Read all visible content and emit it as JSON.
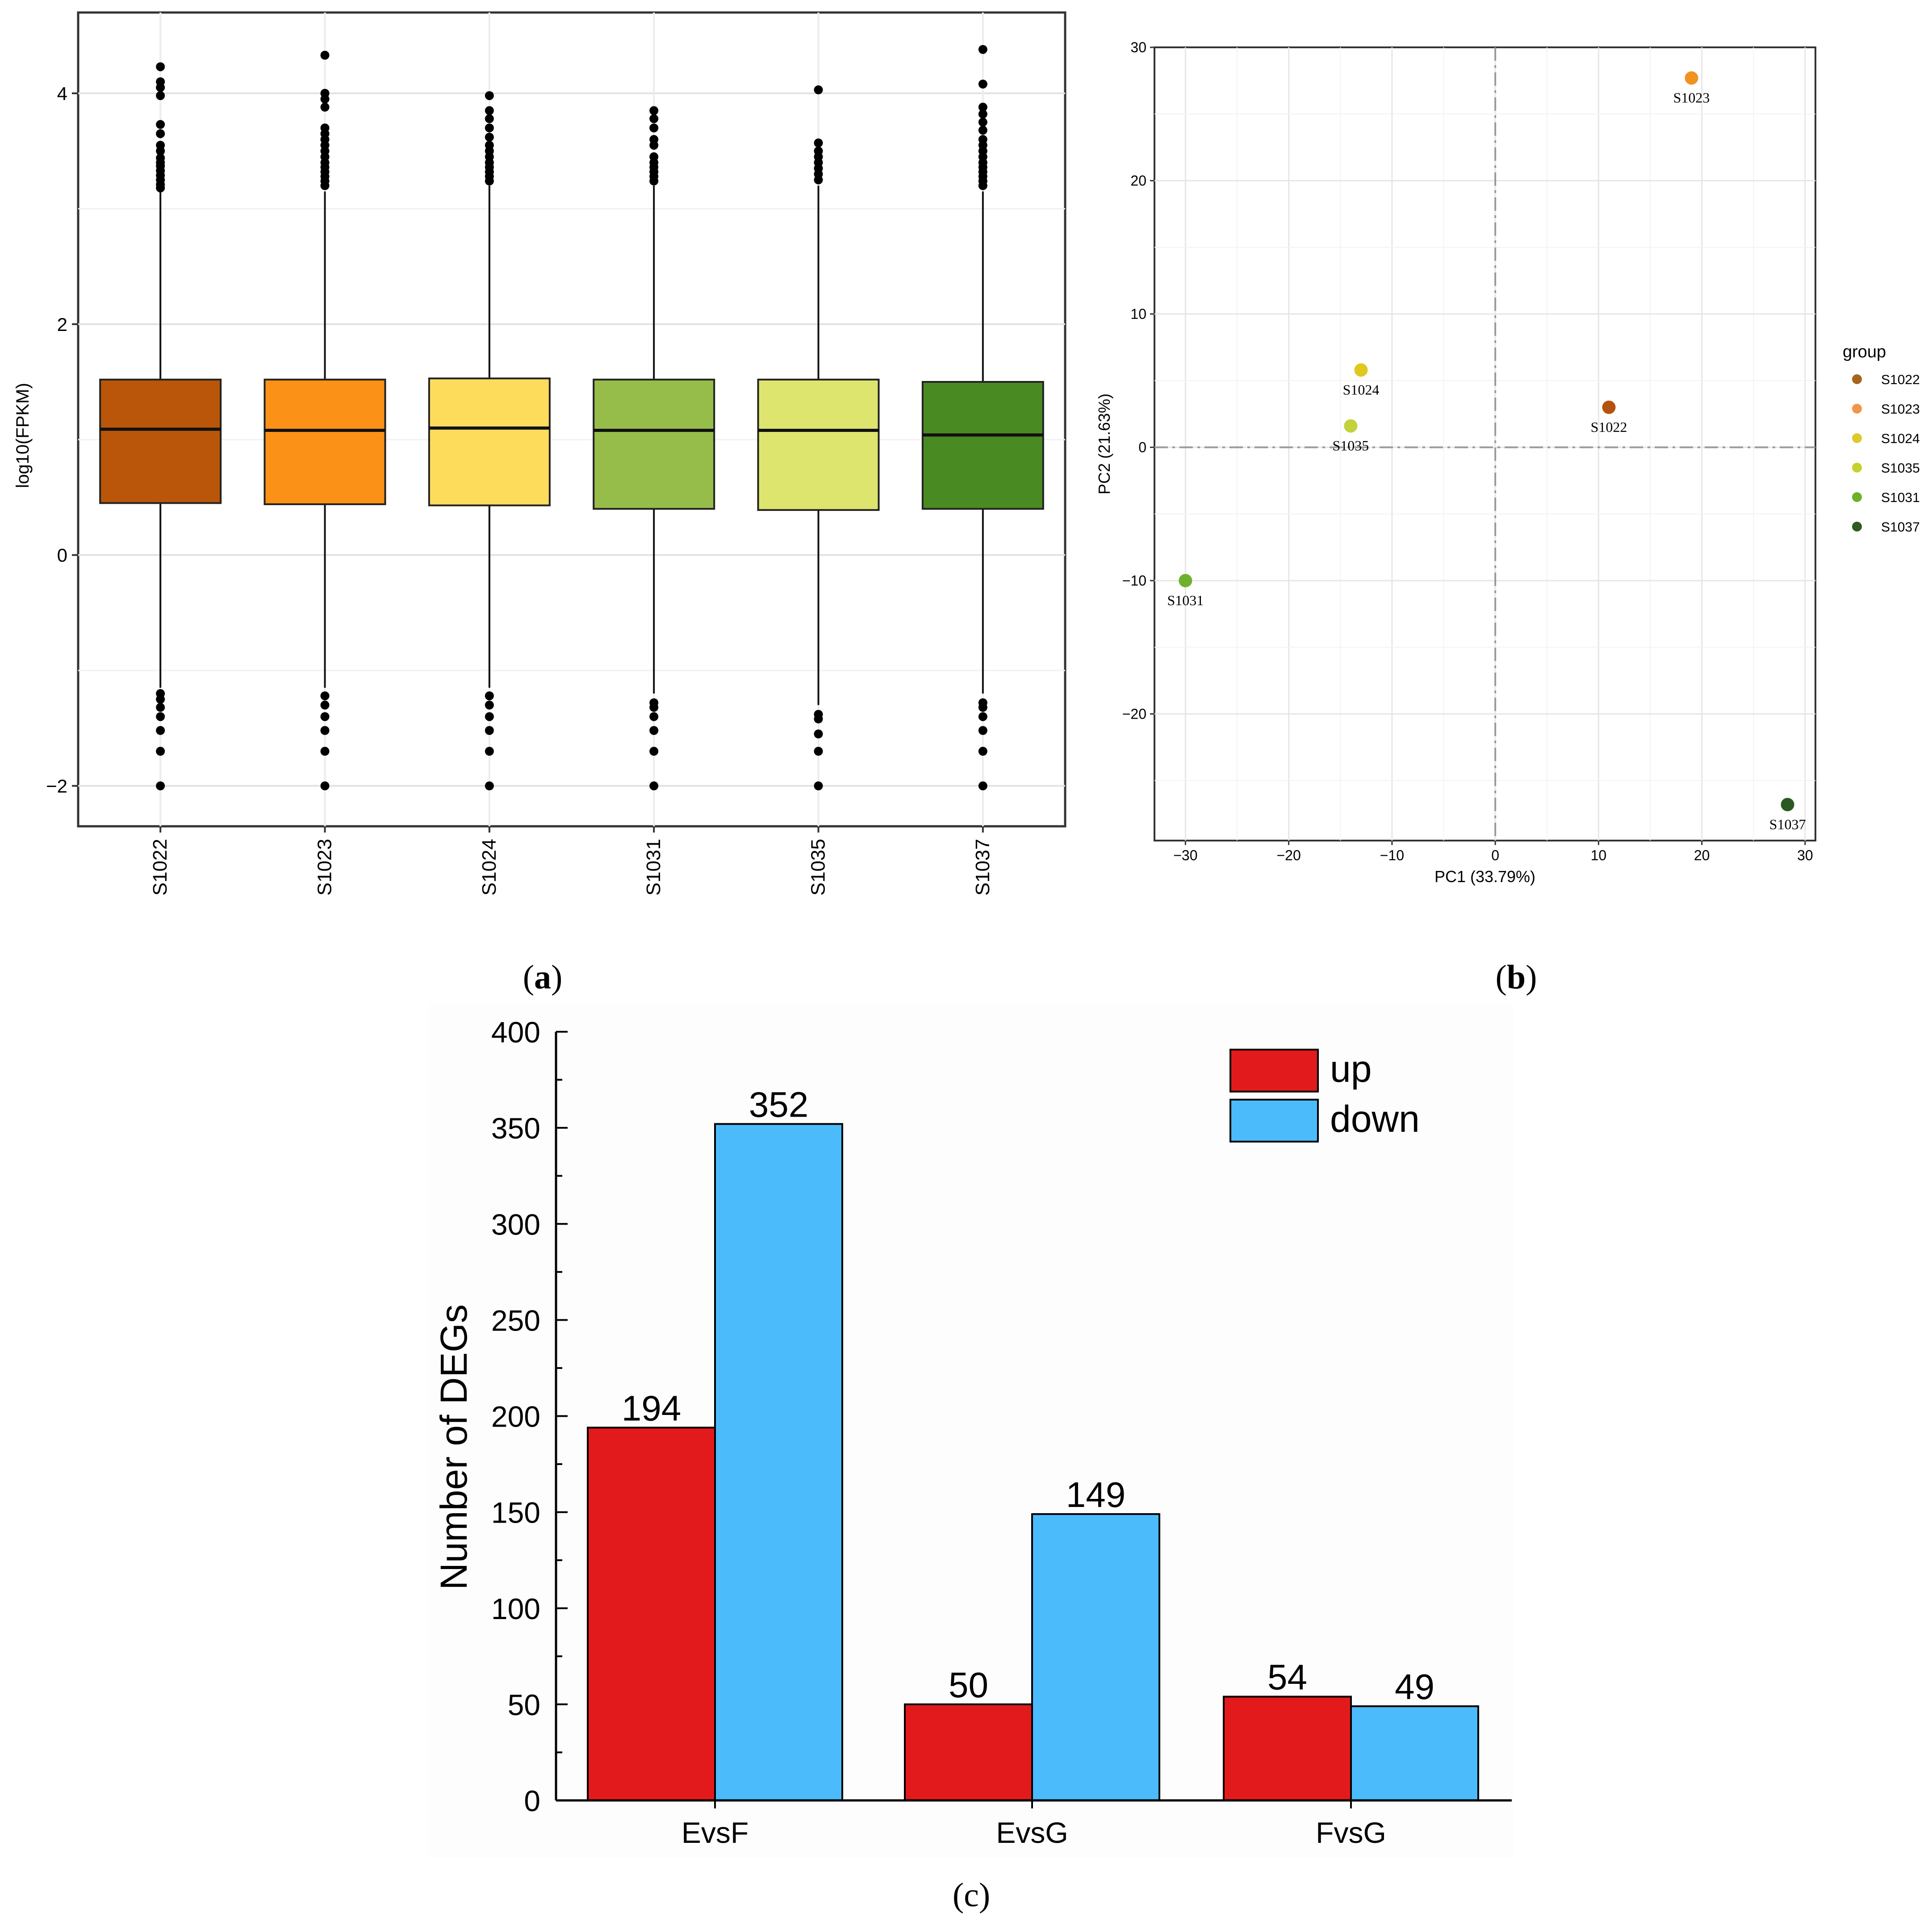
{
  "panels": {
    "a": {
      "label": "(a)",
      "letter": "a"
    },
    "b": {
      "label": "(b)",
      "letter": "b"
    },
    "c": {
      "label": "(c)",
      "letter": "c"
    }
  },
  "chart_data": [
    {
      "id": "a",
      "type": "box",
      "ylabel": "log10(FPKM)",
      "ylim": [
        -2.35,
        4.7
      ],
      "yticks": [
        -2,
        0,
        2,
        4
      ],
      "ytick_labels": [
        "−2",
        "0",
        "2",
        "4"
      ],
      "grid": true,
      "categories": [
        "S1022",
        "S1023",
        "S1024",
        "S1031",
        "S1035",
        "S1037"
      ],
      "colors": [
        "#b9560a",
        "#fb9116",
        "#fddc5c",
        "#96bd49",
        "#dde56f",
        "#4a8a23"
      ],
      "boxes": [
        {
          "name": "S1022",
          "q1": 0.45,
          "median": 1.09,
          "q3": 1.52,
          "whisker_low": -1.15,
          "whisker_high": 3.15,
          "outliers": [
            4.23,
            4.1,
            4.05,
            3.98,
            3.73,
            3.65,
            3.55,
            3.5,
            3.44,
            3.4,
            3.37,
            3.33,
            3.29,
            3.25,
            3.21,
            3.18,
            -1.2,
            -1.25,
            -1.32,
            -1.4,
            -1.52,
            -1.7,
            -2.0
          ]
        },
        {
          "name": "S1023",
          "q1": 0.44,
          "median": 1.08,
          "q3": 1.52,
          "whisker_low": -1.15,
          "whisker_high": 3.15,
          "outliers": [
            4.33,
            4.0,
            3.95,
            3.88,
            3.7,
            3.65,
            3.6,
            3.55,
            3.5,
            3.45,
            3.4,
            3.36,
            3.32,
            3.28,
            3.24,
            3.2,
            -1.22,
            -1.3,
            -1.4,
            -1.52,
            -1.7,
            -2.0
          ]
        },
        {
          "name": "S1024",
          "q1": 0.43,
          "median": 1.1,
          "q3": 1.53,
          "whisker_low": -1.15,
          "whisker_high": 3.2,
          "outliers": [
            3.98,
            3.85,
            3.78,
            3.7,
            3.62,
            3.55,
            3.5,
            3.45,
            3.4,
            3.36,
            3.32,
            3.28,
            3.24,
            -1.22,
            -1.3,
            -1.4,
            -1.52,
            -1.7,
            -2.0
          ]
        },
        {
          "name": "S1031",
          "q1": 0.4,
          "median": 1.08,
          "q3": 1.52,
          "whisker_low": -1.2,
          "whisker_high": 3.2,
          "outliers": [
            3.85,
            3.78,
            3.7,
            3.6,
            3.55,
            3.45,
            3.4,
            3.36,
            3.32,
            3.28,
            3.24,
            -1.28,
            -1.32,
            -1.4,
            -1.52,
            -1.7,
            -2.0
          ]
        },
        {
          "name": "S1035",
          "q1": 0.39,
          "median": 1.08,
          "q3": 1.52,
          "whisker_low": -1.3,
          "whisker_high": 3.2,
          "outliers": [
            4.03,
            3.57,
            3.5,
            3.45,
            3.4,
            3.35,
            3.3,
            3.25,
            -1.38,
            -1.42,
            -1.55,
            -1.7,
            -2.0
          ]
        },
        {
          "name": "S1037",
          "q1": 0.4,
          "median": 1.04,
          "q3": 1.5,
          "whisker_low": -1.2,
          "whisker_high": 3.15,
          "outliers": [
            4.38,
            4.08,
            3.88,
            3.82,
            3.75,
            3.68,
            3.6,
            3.55,
            3.5,
            3.45,
            3.4,
            3.36,
            3.32,
            3.28,
            3.24,
            3.2,
            -1.28,
            -1.32,
            -1.4,
            -1.52,
            -1.7,
            -2.0
          ]
        }
      ]
    },
    {
      "id": "b",
      "type": "scatter",
      "xlabel": "PC1 (33.79%)",
      "ylabel": "PC2 (21.63%)",
      "xlim": [
        -33,
        31
      ],
      "ylim": [
        -29.5,
        30
      ],
      "xticks": [
        -30,
        -20,
        -10,
        0,
        10,
        20,
        30
      ],
      "xtick_labels": [
        "−30",
        "−20",
        "−10",
        "0",
        "10",
        "20",
        "30"
      ],
      "yticks": [
        -20,
        -10,
        0,
        10,
        20,
        30
      ],
      "ytick_labels": [
        "−20",
        "−10",
        "0",
        "10",
        "20",
        "30"
      ],
      "grid": true,
      "reference_lines": {
        "x": 0,
        "y": 0
      },
      "legend": {
        "title": "group",
        "position": "right",
        "entries": [
          {
            "label": "S1022",
            "color": "#a5651f"
          },
          {
            "label": "S1023",
            "color": "#f0954a"
          },
          {
            "label": "S1024",
            "color": "#dfc92a"
          },
          {
            "label": "S1035",
            "color": "#c4d22c"
          },
          {
            "label": "S1031",
            "color": "#6cb02b"
          },
          {
            "label": "S1037",
            "color": "#2f5a23"
          }
        ]
      },
      "points": [
        {
          "label": "S1022",
          "x": 11.0,
          "y": 3.0,
          "color": "#b5520e",
          "label_pos": "below"
        },
        {
          "label": "S1023",
          "x": 19.0,
          "y": 27.7,
          "color": "#f0921f",
          "label_pos": "below"
        },
        {
          "label": "S1024",
          "x": -13.0,
          "y": 5.8,
          "color": "#e0c81d",
          "label_pos": "below"
        },
        {
          "label": "S1035",
          "x": -14.0,
          "y": 1.6,
          "color": "#c2d23c",
          "label_pos": "below"
        },
        {
          "label": "S1031",
          "x": -30.0,
          "y": -10.0,
          "color": "#6fb12d",
          "label_pos": "below"
        },
        {
          "label": "S1037",
          "x": 28.3,
          "y": -26.8,
          "color": "#2a5a21",
          "label_pos": "below"
        }
      ]
    },
    {
      "id": "c",
      "type": "bar",
      "ylabel": "Number of DEGs",
      "ylim": [
        0,
        400
      ],
      "yticks": [
        0,
        50,
        100,
        150,
        200,
        250,
        300,
        350,
        400
      ],
      "ytick_labels": [
        "0",
        "50",
        "100",
        "150",
        "200",
        "250",
        "300",
        "350",
        "400"
      ],
      "categories": [
        "EvsF",
        "EvsG",
        "FvsG"
      ],
      "legend_position": "top-right",
      "series": [
        {
          "name": "up",
          "color": "#e31a1c",
          "values": [
            194,
            50,
            54
          ]
        },
        {
          "name": "down",
          "color": "#4cbbfc",
          "values": [
            352,
            149,
            49
          ]
        }
      ]
    }
  ]
}
